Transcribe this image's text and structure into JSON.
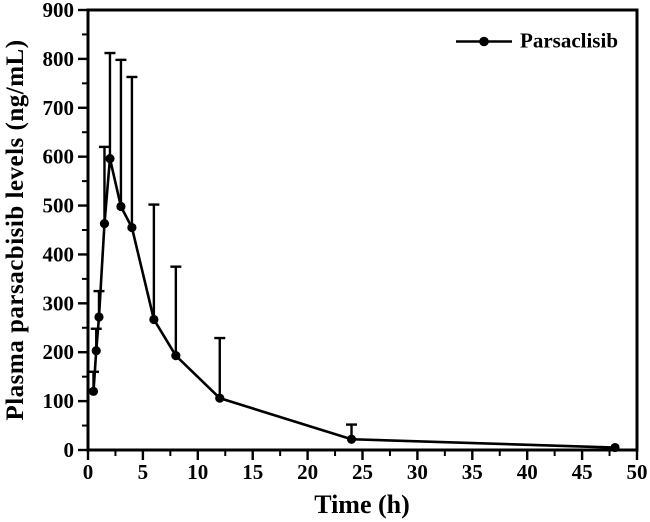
{
  "figure": {
    "background": "#ffffff",
    "ink_color": "#000000"
  },
  "chart_data": {
    "type": "line",
    "title": "",
    "xlabel": "Time (h)",
    "ylabel": "Plasma parsacbisib levels (ng/mL)",
    "xlim": [
      0,
      50
    ],
    "ylim": [
      0,
      900
    ],
    "x_major_ticks": [
      0,
      5,
      10,
      15,
      20,
      25,
      30,
      35,
      40,
      45,
      50
    ],
    "x_minor_step": 2.5,
    "y_major_ticks": [
      0,
      100,
      200,
      300,
      400,
      500,
      600,
      700,
      800,
      900
    ],
    "y_minor_step": 50,
    "grid": false,
    "frame": true,
    "legend_position": "top-right-inside",
    "series": [
      {
        "name": "Parsaclisib",
        "marker": "filled-circle",
        "color": "#000000",
        "x": [
          0.5,
          0.75,
          1,
          1.5,
          2,
          3,
          4,
          6,
          8,
          12,
          24,
          48
        ],
        "y": [
          120,
          203,
          272,
          463,
          596,
          498,
          455,
          267,
          193,
          106,
          22,
          5
        ],
        "error_upper": [
          40,
          45,
          53,
          157,
          216,
          300,
          308,
          235,
          182,
          123,
          30,
          0
        ]
      }
    ]
  }
}
